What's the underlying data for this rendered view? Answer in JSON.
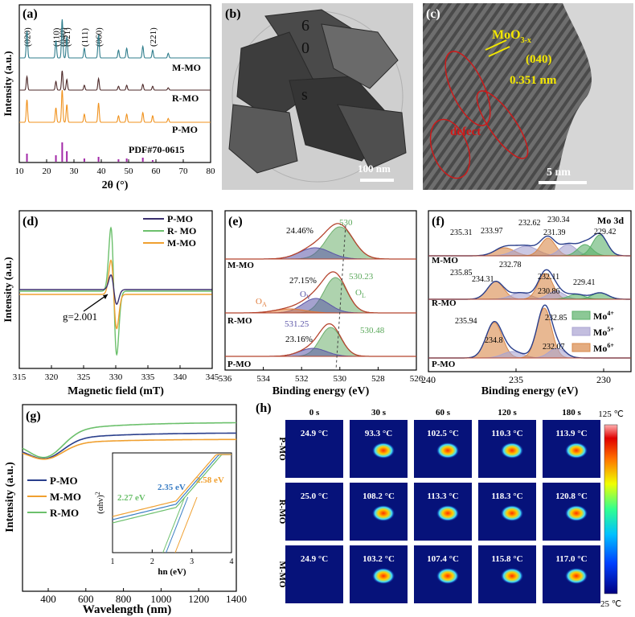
{
  "colors": {
    "pmo": "#f0921e",
    "rmo": "#4e2a2a",
    "mmo": "#2f7d8c",
    "pdf": "#a228a8",
    "epr_p": "#3a2f6e",
    "epr_r": "#6cc06c",
    "epr_m": "#f0a030",
    "green_fill": "#5bb06a",
    "purple_fill": "#a9a3d1",
    "orange_fill": "#d9894a",
    "ol": "#6cae6c",
    "ov": "#5b55a8",
    "oa": "#e07b3a",
    "yellow": "#f2e600",
    "red": "#d01818"
  },
  "panel_a": {
    "tag": "(a)",
    "ylabel": "Intensity (a.u.)",
    "xlabel": "2θ (°)",
    "xticks": [
      "10",
      "20",
      "30",
      "40",
      "50",
      "60",
      "70",
      "80"
    ],
    "peak_labels": [
      "(020)",
      "(110)",
      "(040)",
      "(021)",
      "(111)",
      "(060)",
      "(221)"
    ],
    "curve_labels": [
      "M-MO",
      "R-MO",
      "P-MO"
    ],
    "ref_label": "PDF#70-0615"
  },
  "panel_b": {
    "tag": "(b)",
    "scalebar": "100 nm",
    "overlay_chars": [
      "6",
      "0",
      "s"
    ]
  },
  "panel_c": {
    "tag": "(c)",
    "phase": "MoO",
    "phase_sub": "3-x",
    "plane": "(040)",
    "spacing": "0.351 nm",
    "defect": "defect",
    "scalebar": "5 nm"
  },
  "panel_d": {
    "tag": "(d)",
    "ylabel": "Intensity (a.u.)",
    "xlabel": "Magnetic field (mT)",
    "xticks": [
      "315",
      "320",
      "325",
      "330",
      "335",
      "340",
      "345"
    ],
    "legend": [
      "P-MO",
      "R- MO",
      "M-MO"
    ],
    "g_label": "g=2.001"
  },
  "panel_e": {
    "tag": "(e)",
    "xlabel": "Binding energy (eV)",
    "xticks": [
      "536",
      "534",
      "532",
      "530",
      "528",
      "526"
    ],
    "curve_labels": [
      "M-MO",
      "R-MO",
      "P-MO"
    ],
    "m_pct": "24.46%",
    "m_peak": "530",
    "r_pct": "27.15%",
    "r_peak": "530.23",
    "r_ov": "531.25",
    "oa": "O",
    "oa_sub": "A",
    "ov": "O",
    "ov_sub": "V",
    "ol": "O",
    "ol_sub": "L",
    "p_pct": "23.16%",
    "p_peak": "530.48"
  },
  "panel_f": {
    "tag": "(f)",
    "title": "Mo 3d",
    "xlabel": "Binding energy (eV)",
    "xticks": [
      "240",
      "235",
      "230"
    ],
    "curve_labels": [
      "M-MO",
      "R-MO",
      "P-MO"
    ],
    "m_vals": [
      "235.31",
      "233.97",
      "232.62",
      "231.39",
      "230.34",
      "229.42"
    ],
    "r_vals": [
      "235.85",
      "234.31",
      "232.78",
      "232.11",
      "230.86",
      "229.41"
    ],
    "p_vals": [
      "235.94",
      "234.8",
      "232.85",
      "232.07"
    ],
    "legend": [
      {
        "base": "Mo",
        "sup": "4+"
      },
      {
        "base": "Mo",
        "sup": "5+"
      },
      {
        "base": "Mo",
        "sup": "6+"
      }
    ]
  },
  "panel_g": {
    "tag": "(g)",
    "ylabel": "Intensity (a.u.)",
    "xlabel": "Wavelength (nm)",
    "xticks": [
      "400",
      "600",
      "800",
      "1000",
      "1200",
      "1400"
    ],
    "legend": [
      "P-MO",
      "M-MO",
      "R-MO"
    ],
    "inset": {
      "ylabel": "(αhν)",
      "ylabel_sup": "2",
      "xlabel": "hn (eV)",
      "xticks": [
        "1",
        "2",
        "3",
        "4"
      ],
      "gaps": [
        "2.35 eV",
        "2.58 eV",
        "2.27 eV"
      ]
    }
  },
  "panel_h": {
    "tag": "(h)",
    "col_headers": [
      "0 s",
      "30 s",
      "60 s",
      "120 s",
      "180 s"
    ],
    "row_labels": [
      "P-MO",
      "R-MO",
      "M-MO"
    ],
    "temps": [
      [
        "24.9 °C",
        "93.3 °C",
        "102.5 °C",
        "110.3 °C",
        "113.9 °C"
      ],
      [
        "25.0 °C",
        "108.2 °C",
        "113.3 °C",
        "118.3 °C",
        "120.8 °C"
      ],
      [
        "24.9 °C",
        "103.2 °C",
        "107.4 °C",
        "115.8 °C",
        "117.0 °C"
      ]
    ],
    "scale_max": "125 ℃",
    "scale_min": "25 ℃"
  }
}
